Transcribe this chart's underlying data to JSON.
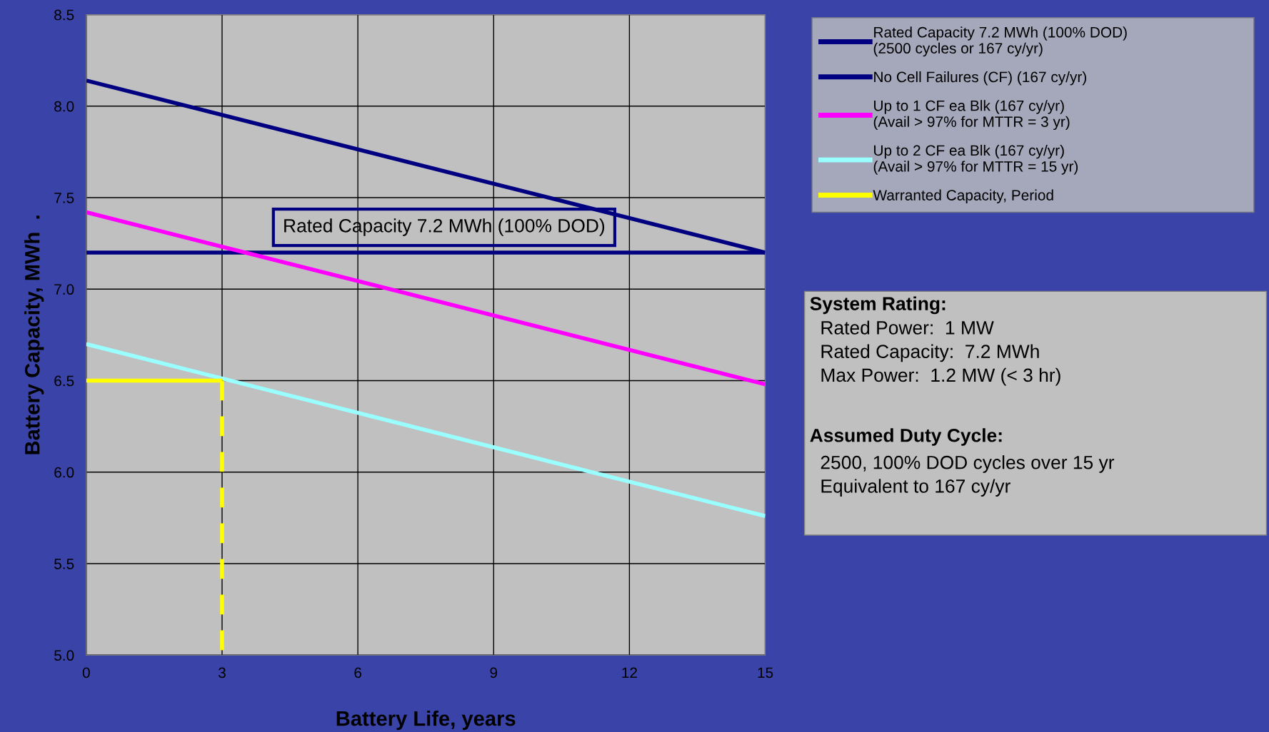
{
  "chart_data": {
    "type": "line",
    "xlabel": "Battery Life, years",
    "ylabel": "Battery Capacity, MWh  .",
    "xlim": [
      0,
      15
    ],
    "xticks": [
      0,
      3,
      6,
      9,
      12,
      15
    ],
    "ylim": [
      5.0,
      8.5
    ],
    "yticks": [
      {
        "value": 5.0,
        "label": "5.0"
      },
      {
        "value": 5.5,
        "label": "5.5"
      },
      {
        "value": 6.0,
        "label": "6.0"
      },
      {
        "value": 6.5,
        "label": "6.5"
      },
      {
        "value": 7.0,
        "label": "7.0"
      },
      {
        "value": 7.5,
        "label": "7.5"
      },
      {
        "value": 8.0,
        "label": "8.0"
      },
      {
        "value": 8.5,
        "label": "8.5"
      }
    ],
    "grid": true,
    "legend": "right",
    "marker": "none",
    "series": [
      {
        "name": "Rated Capacity 7.2 MWh (100% DOD)\n(2500 cycles or 167 cy/yr)",
        "color": "#000080",
        "x": [
          0,
          15
        ],
        "values": [
          7.2,
          7.2
        ],
        "line_style": "solid"
      },
      {
        "name": "No Cell Failures (CF) (167 cy/yr)",
        "color": "#000080",
        "x": [
          0,
          15
        ],
        "values": [
          8.14,
          7.2
        ],
        "line_style": "solid"
      },
      {
        "name": "Up to 1 CF ea Blk (167 cy/yr)\n(Avail > 97% for MTTR = 3 yr)",
        "color": "#ff00ff",
        "x": [
          0,
          15
        ],
        "values": [
          7.42,
          6.48
        ],
        "line_style": "solid"
      },
      {
        "name": "Up to 2 CF ea Blk (167 cy/yr)\n(Avail > 97% for MTTR = 15 yr)",
        "color": "#99ffff",
        "x": [
          0,
          15
        ],
        "values": [
          6.7,
          5.76
        ],
        "line_style": "solid"
      },
      {
        "name": "Warranted Capacity, Period",
        "color": "#ffff00",
        "x": [
          0,
          3
        ],
        "values": [
          6.5,
          6.5
        ],
        "line_style": "solid"
      },
      {
        "color": "#ffff00",
        "x": [
          3,
          3
        ],
        "values": [
          6.5,
          5.0
        ],
        "line_style": "dashed"
      }
    ],
    "annotations": [
      "Rated Capacity 7.2 MWh (100% DOD)",
      "System Rating:",
      "  Rated Power:  1 MW\n  Rated Capacity:  7.2 MWh\n  Max Power:  1.2 MW (< 3 hr)",
      "Assumed Duty Cycle:",
      "  2500, 100% DOD cycles over 15 yr\n  Equivalent to 167 cy/yr"
    ]
  }
}
